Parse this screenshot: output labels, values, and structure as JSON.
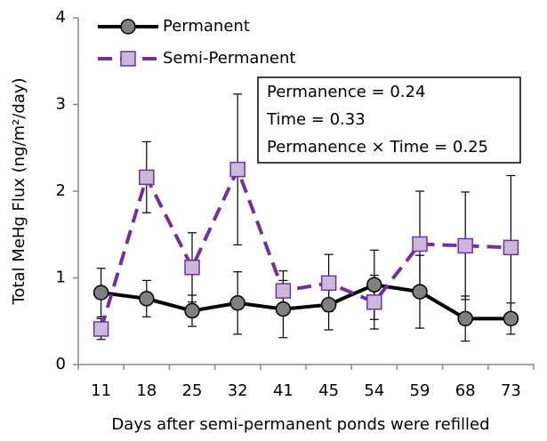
{
  "chart_data": {
    "type": "line",
    "x_label": "Days after semi-permanent ponds were refilled",
    "y_label": "Total MeHg Flux (ng/m²/day)",
    "categories": [
      "11",
      "18",
      "25",
      "32",
      "41",
      "45",
      "54",
      "59",
      "68",
      "73"
    ],
    "series": [
      {
        "name": "Permanent",
        "color": "#000000",
        "marker": "circle",
        "marker_fill": "#808080",
        "dashed": false,
        "values": [
          0.83,
          0.76,
          0.62,
          0.71,
          0.64,
          0.69,
          0.92,
          0.84,
          0.53,
          0.53
        ],
        "errors": [
          0.28,
          0.21,
          0.18,
          0.36,
          0.33,
          0.29,
          0.4,
          0.42,
          0.26,
          0.18
        ]
      },
      {
        "name": "Semi-Permanent",
        "color": "#7030a0",
        "marker": "square",
        "marker_fill": "#c9b8dc",
        "dashed": true,
        "values": [
          0.41,
          2.16,
          1.12,
          2.25,
          0.85,
          0.94,
          0.72,
          1.39,
          1.37,
          1.35
        ],
        "errors": [
          0.12,
          0.41,
          0.4,
          0.87,
          0.23,
          0.33,
          0.31,
          0.61,
          0.62,
          0.83
        ]
      }
    ],
    "ylim": [
      0,
      4
    ],
    "yticks": [
      0,
      1,
      2,
      3,
      4
    ],
    "grid": false,
    "legend": "top-left",
    "annotation": [
      "Permanence = 0.24",
      "Time = 0.33",
      "Permanence × Time = 0.25"
    ]
  }
}
